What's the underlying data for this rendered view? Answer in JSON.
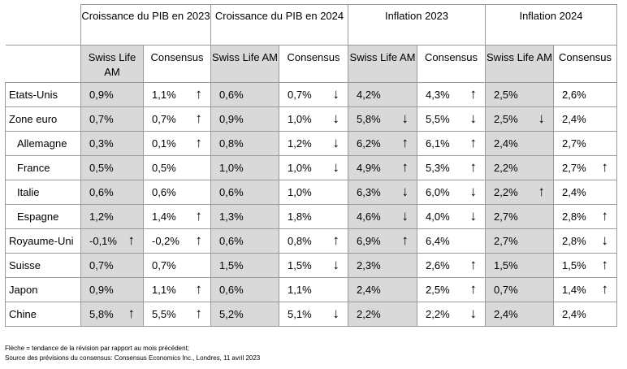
{
  "headers": {
    "groups": [
      "Croissance du PIB en 2023",
      "Croissance du PIB en 2024",
      "Inflation 2023",
      "Inflation 2024"
    ],
    "sub": [
      "Swiss Life AM",
      "Consensus"
    ]
  },
  "rows": [
    {
      "label": "Etats-Unis",
      "cells": [
        {
          "v": "0,9%",
          "a": ""
        },
        {
          "v": "1,1%",
          "a": "↑"
        },
        {
          "v": "0,6%",
          "a": ""
        },
        {
          "v": "0,7%",
          "a": "↓"
        },
        {
          "v": "4,2%",
          "a": ""
        },
        {
          "v": "4,3%",
          "a": "↑"
        },
        {
          "v": "2,5%",
          "a": ""
        },
        {
          "v": "2,6%",
          "a": ""
        }
      ]
    },
    {
      "label": "Zone euro",
      "cells": [
        {
          "v": "0,7%",
          "a": ""
        },
        {
          "v": "0,7%",
          "a": "↑"
        },
        {
          "v": "0,9%",
          "a": ""
        },
        {
          "v": "1,0%",
          "a": "↓"
        },
        {
          "v": "5,8%",
          "a": "↓"
        },
        {
          "v": "5,5%",
          "a": "↓"
        },
        {
          "v": "2,5%",
          "a": "↓"
        },
        {
          "v": "2,4%",
          "a": ""
        }
      ]
    },
    {
      "label": "Allemagne",
      "cells": [
        {
          "v": "0,3%",
          "a": ""
        },
        {
          "v": "0,1%",
          "a": "↑"
        },
        {
          "v": "0,8%",
          "a": ""
        },
        {
          "v": "1,2%",
          "a": "↓"
        },
        {
          "v": "6,2%",
          "a": "↑"
        },
        {
          "v": "6,1%",
          "a": "↑"
        },
        {
          "v": "2,4%",
          "a": ""
        },
        {
          "v": "2,7%",
          "a": ""
        }
      ]
    },
    {
      "label": "France",
      "cells": [
        {
          "v": "0,5%",
          "a": ""
        },
        {
          "v": "0,5%",
          "a": ""
        },
        {
          "v": "1,0%",
          "a": ""
        },
        {
          "v": "1,0%",
          "a": "↓"
        },
        {
          "v": "4,9%",
          "a": "↑"
        },
        {
          "v": "5,3%",
          "a": "↑"
        },
        {
          "v": "2,2%",
          "a": ""
        },
        {
          "v": "2,7%",
          "a": "↑"
        }
      ]
    },
    {
      "label": "Italie",
      "cells": [
        {
          "v": "0,6%",
          "a": ""
        },
        {
          "v": "0,6%",
          "a": ""
        },
        {
          "v": "0,6%",
          "a": ""
        },
        {
          "v": "1,0%",
          "a": ""
        },
        {
          "v": "6,3%",
          "a": "↓"
        },
        {
          "v": "6,0%",
          "a": "↓"
        },
        {
          "v": "2,2%",
          "a": "↑"
        },
        {
          "v": "2,4%",
          "a": ""
        }
      ]
    },
    {
      "label": "Espagne",
      "cells": [
        {
          "v": "1,2%",
          "a": ""
        },
        {
          "v": "1,4%",
          "a": "↑"
        },
        {
          "v": "1,3%",
          "a": ""
        },
        {
          "v": "1,8%",
          "a": ""
        },
        {
          "v": "4,6%",
          "a": "↓"
        },
        {
          "v": "4,0%",
          "a": "↓"
        },
        {
          "v": "2,7%",
          "a": ""
        },
        {
          "v": "2,8%",
          "a": "↑"
        }
      ]
    },
    {
      "label": "Royaume-Uni",
      "cells": [
        {
          "v": "-0,1%",
          "a": "↑"
        },
        {
          "v": "-0,2%",
          "a": "↑"
        },
        {
          "v": "0,6%",
          "a": ""
        },
        {
          "v": "0,8%",
          "a": "↑"
        },
        {
          "v": "6,9%",
          "a": "↑"
        },
        {
          "v": "6,4%",
          "a": ""
        },
        {
          "v": "2,7%",
          "a": ""
        },
        {
          "v": "2,8%",
          "a": "↓"
        }
      ]
    },
    {
      "label": "Suisse",
      "cells": [
        {
          "v": "0,7%",
          "a": ""
        },
        {
          "v": "0,7%",
          "a": ""
        },
        {
          "v": "1,5%",
          "a": ""
        },
        {
          "v": "1,5%",
          "a": "↓"
        },
        {
          "v": "2,3%",
          "a": ""
        },
        {
          "v": "2,6%",
          "a": "↑"
        },
        {
          "v": "1,5%",
          "a": ""
        },
        {
          "v": "1,5%",
          "a": "↑"
        }
      ]
    },
    {
      "label": "Japon",
      "cells": [
        {
          "v": "0,9%",
          "a": ""
        },
        {
          "v": "1,1%",
          "a": "↑"
        },
        {
          "v": "0,6%",
          "a": ""
        },
        {
          "v": "1,1%",
          "a": ""
        },
        {
          "v": "2,4%",
          "a": ""
        },
        {
          "v": "2,5%",
          "a": "↑"
        },
        {
          "v": "0,7%",
          "a": ""
        },
        {
          "v": "1,4%",
          "a": "↑"
        }
      ]
    },
    {
      "label": "Chine",
      "cells": [
        {
          "v": "5,8%",
          "a": "↑"
        },
        {
          "v": "5,5%",
          "a": "↑"
        },
        {
          "v": "5,2%",
          "a": ""
        },
        {
          "v": "5,1%",
          "a": "↓"
        },
        {
          "v": "2,2%",
          "a": ""
        },
        {
          "v": "2,2%",
          "a": "↓"
        },
        {
          "v": "2,4%",
          "a": ""
        },
        {
          "v": "2,4%",
          "a": ""
        }
      ]
    }
  ],
  "indented": [
    "Allemagne",
    "France",
    "Italie",
    "Espagne"
  ],
  "footnotes": [
    "Flèche = tendance de la révision par rapport au mois précédent;",
    "Source des prévisions du consensus: Consensus Economics Inc., Londres, 11 avril 2023"
  ],
  "colors": {
    "swiss_life_shade": "#d9d9d9",
    "grid": "#9a9a9a"
  }
}
